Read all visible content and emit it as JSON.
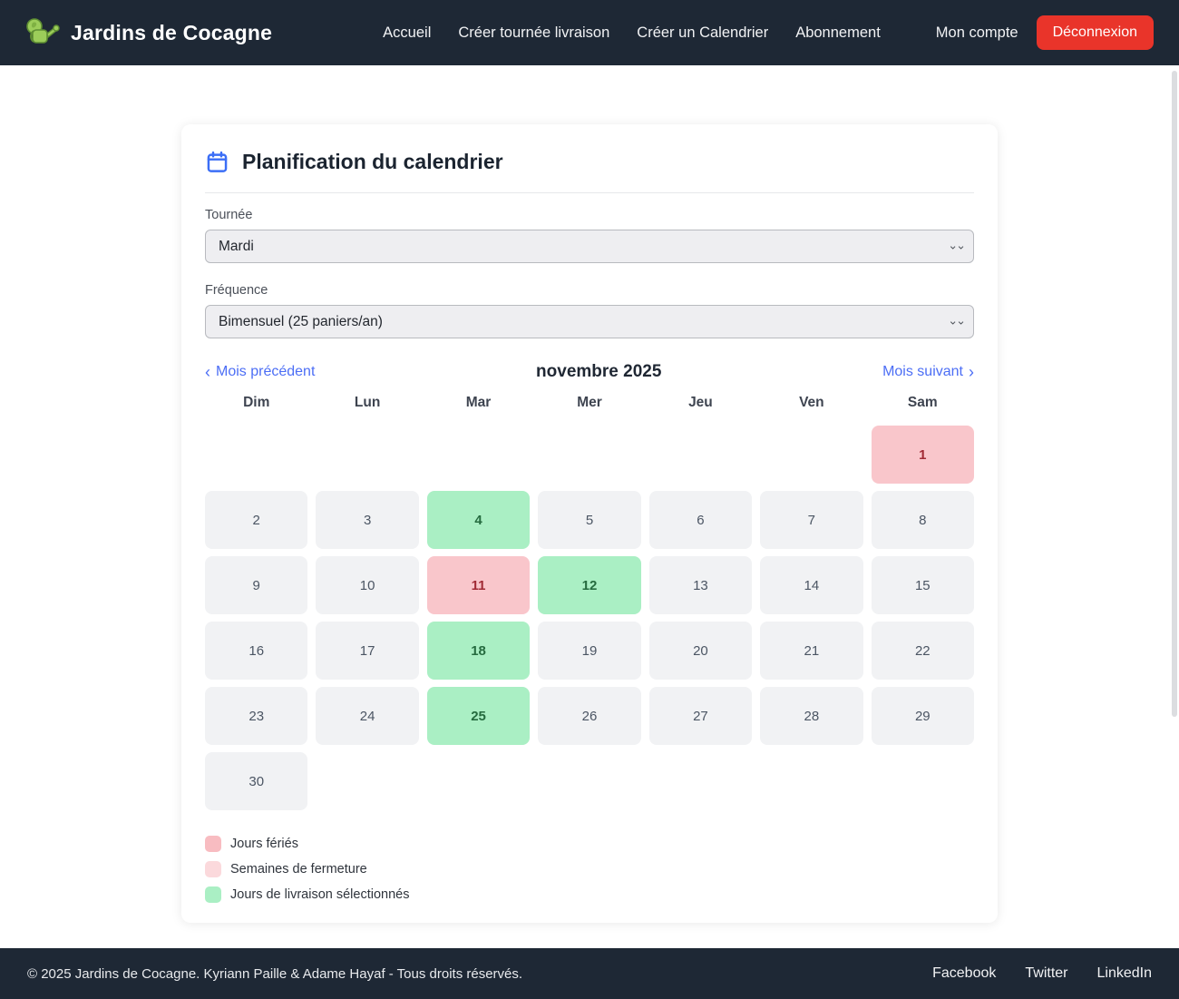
{
  "navbar": {
    "brand": "Jardins de Cocagne",
    "links": [
      "Accueil",
      "Créer tournée livraison",
      "Créer un Calendrier",
      "Abonnement"
    ],
    "account_label": "Mon compte",
    "logout_label": "Déconnexion"
  },
  "page": {
    "title": "Planification du calendrier",
    "form": {
      "tournee": {
        "label": "Tournée",
        "value": "Mardi"
      },
      "frequence": {
        "label": "Fréquence",
        "value": "Bimensuel (25 paniers/an)"
      }
    },
    "calendar": {
      "prev_label": "Mois précédent",
      "next_label": "Mois suivant",
      "prev_arrow": "‹",
      "next_arrow": "›",
      "month_title": "novembre 2025",
      "weekdays": [
        "Dim",
        "Lun",
        "Mar",
        "Mer",
        "Jeu",
        "Ven",
        "Sam"
      ],
      "leading_blanks": 6,
      "days": [
        {
          "n": 1,
          "type": "holiday"
        },
        {
          "n": 2,
          "type": "normal"
        },
        {
          "n": 3,
          "type": "normal"
        },
        {
          "n": 4,
          "type": "selected"
        },
        {
          "n": 5,
          "type": "normal"
        },
        {
          "n": 6,
          "type": "normal"
        },
        {
          "n": 7,
          "type": "normal"
        },
        {
          "n": 8,
          "type": "normal"
        },
        {
          "n": 9,
          "type": "normal"
        },
        {
          "n": 10,
          "type": "normal"
        },
        {
          "n": 11,
          "type": "holiday"
        },
        {
          "n": 12,
          "type": "selected"
        },
        {
          "n": 13,
          "type": "normal"
        },
        {
          "n": 14,
          "type": "normal"
        },
        {
          "n": 15,
          "type": "normal"
        },
        {
          "n": 16,
          "type": "normal"
        },
        {
          "n": 17,
          "type": "normal"
        },
        {
          "n": 18,
          "type": "selected"
        },
        {
          "n": 19,
          "type": "normal"
        },
        {
          "n": 20,
          "type": "normal"
        },
        {
          "n": 21,
          "type": "normal"
        },
        {
          "n": 22,
          "type": "normal"
        },
        {
          "n": 23,
          "type": "normal"
        },
        {
          "n": 24,
          "type": "normal"
        },
        {
          "n": 25,
          "type": "selected"
        },
        {
          "n": 26,
          "type": "normal"
        },
        {
          "n": 27,
          "type": "normal"
        },
        {
          "n": 28,
          "type": "normal"
        },
        {
          "n": 29,
          "type": "normal"
        },
        {
          "n": 30,
          "type": "normal"
        }
      ],
      "legend": [
        {
          "label": "Jours fériés",
          "color": "#f8bcc1"
        },
        {
          "label": "Semaines de fermeture",
          "color": "#fbd9dc"
        },
        {
          "label": "Jours de livraison sélectionnés",
          "color": "#aaefc4"
        }
      ]
    }
  },
  "footer": {
    "copyright": "© 2025 Jardins de Cocagne. Kyriann Paille & Adame Hayaf - Tous droits réservés.",
    "links": [
      "Facebook",
      "Twitter",
      "LinkedIn"
    ]
  },
  "colors": {
    "navbar_bg": "#1e2835",
    "logout_red": "#e9342a",
    "link_blue": "#4c6ef5",
    "title_icon_blue": "#3b6ef6",
    "logo_green": "#8bc34a",
    "holiday_bg": "#f9c6cb",
    "holiday_text": "#a12a35",
    "selected_bg": "#aaefc4",
    "selected_text": "#256b3f",
    "day_bg": "#f1f2f4",
    "day_text": "#4b5563"
  }
}
